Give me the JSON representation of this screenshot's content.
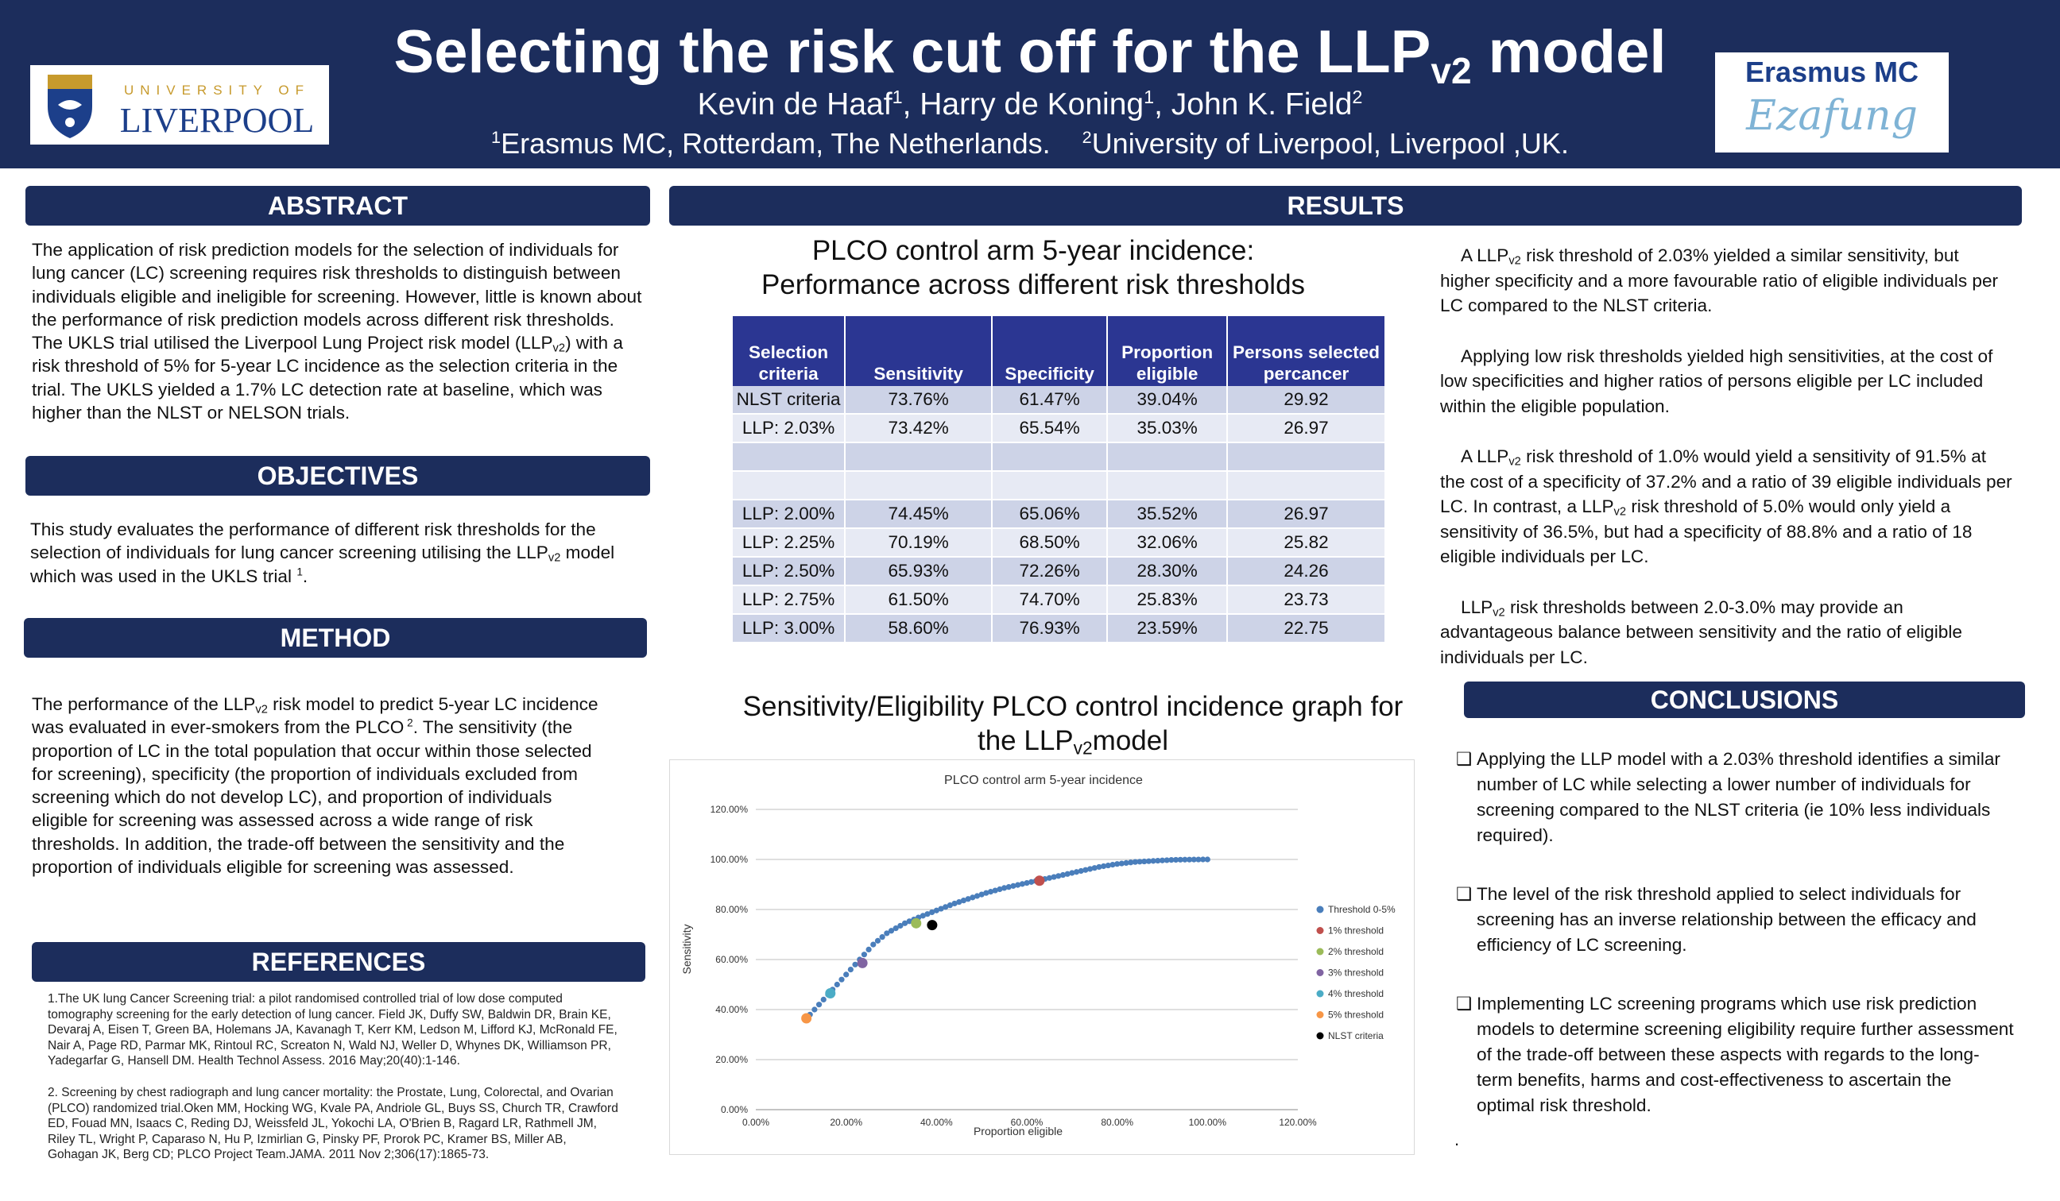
{
  "header": {
    "title_main": "Selecting the risk cut off for the LLP",
    "title_sub": "v2",
    "title_tail": " model",
    "authors": [
      {
        "name": "Kevin de Haaf",
        "aff": "1"
      },
      {
        "name": "Harry de Koning",
        "aff": "1"
      },
      {
        "name": "John K. Field",
        "aff": "2"
      }
    ],
    "affiliations": [
      {
        "num": "1",
        "text": "Erasmus MC, Rotterdam, The Netherlands."
      },
      {
        "num": "2",
        "text": "University of Liverpool, Liverpool ,UK."
      }
    ],
    "logo_left": {
      "small": "UNIVERSITY OF",
      "big": "LIVERPOOL"
    },
    "logo_right": {
      "text": "Erasmus MC",
      "script": "Ezafung"
    }
  },
  "sections": {
    "abstract": "ABSTRACT",
    "objectives": "OBJECTIVES",
    "method": "METHOD",
    "references": "REFERENCES",
    "results": "RESULTS",
    "conclusions": "CONCLUSIONS"
  },
  "abstract": {
    "part1": "The application of risk prediction models for the selection of individuals for lung cancer (LC) screening requires risk thresholds to distinguish between individuals eligible and ineligible for screening. However, little is known about the performance of risk prediction models across different risk thresholds. The UKLS trial utilised the Liverpool Lung Project risk model  (LLP",
    "sub": "v2",
    "part2": ") with a risk threshold of 5% for 5-year LC incidence as the selection criteria in the trial. The UKLS yielded a 1.7% LC detection rate at baseline, which was higher than the NLST or NELSON trials."
  },
  "objectives": {
    "part1": "This study evaluates the performance of different risk thresholds for the selection of individuals for lung cancer screening utilising the LLP",
    "sub": "v2",
    "part2": " model which was used in the UKLS trial ",
    "ref": "1",
    "part3": "."
  },
  "method": {
    "part1": "The performance of the LLP",
    "sub": "v2",
    "part2": " risk model to predict 5-year LC incidence was evaluated in ever-smokers from the PLCO",
    "ref": " 2",
    "part3": ". The sensitivity (the proportion of LC in the total population that occur within those selected for screening), specificity (the proportion of individuals excluded from screening which do not develop LC), and proportion of individuals eligible for screening was assessed across a wide range of risk thresholds. In addition, the trade-off between the sensitivity and the proportion of individuals eligible for screening was assessed."
  },
  "references": [
    "1.The UK lung Cancer Screening trial: a pilot randomised controlled trial of low dose computed tomography screening for the early detection of lung cancer. Field JK, Duffy SW, Baldwin DR, Brain KE, Devaraj A, Eisen T, Green BA, Holemans JA, Kavanagh T, Kerr KM, Ledson M, Lifford KJ, McRonald FE, Nair A, Page RD, Parmar MK, Rintoul RC, Screaton N, Wald NJ, Weller D, Whynes DK, Williamson PR, Yadegarfar G, Hansell DM. Health Technol Assess. 2016 May;20(40):1-146.",
    "2. Screening by chest radiograph and lung cancer mortality: the Prostate, Lung, Colorectal, and Ovarian (PLCO) randomized trial.Oken MM, Hocking WG, Kvale PA, Andriole GL, Buys SS, Church TR, Crawford ED, Fouad MN, Isaacs C, Reding DJ, Weissfeld JL, Yokochi LA, O'Brien B, Ragard LR, Rathmell JM, Riley TL, Wright P, Caparaso N, Hu P, Izmirlian G, Pinsky PF, Prorok PC, Kramer BS, Miller AB, Gohagan JK, Berg CD; PLCO Project Team.JAMA. 2011 Nov 2;306(17):1865-73."
  ],
  "table_title": {
    "line1": "PLCO control arm 5-year incidence:",
    "line2": "Performance across different risk thresholds"
  },
  "table": {
    "headers": [
      [
        "Selection",
        "criteria"
      ],
      [
        "Sensitivity"
      ],
      [
        "Specificity"
      ],
      [
        "Proportion",
        "eligible"
      ],
      [
        "Persons selected",
        "percancer"
      ]
    ],
    "rows": [
      [
        "NLST criteria",
        "73.76%",
        "61.47%",
        "39.04%",
        "29.92"
      ],
      [
        "LLP: 2.03%",
        "73.42%",
        "65.54%",
        "35.03%",
        "26.97"
      ],
      [
        "",
        "",
        "",
        "",
        ""
      ],
      [
        "",
        "",
        "",
        "",
        ""
      ],
      [
        "LLP: 2.00%",
        "74.45%",
        "65.06%",
        "35.52%",
        "26.97"
      ],
      [
        "LLP: 2.25%",
        "70.19%",
        "68.50%",
        "32.06%",
        "25.82"
      ],
      [
        "LLP: 2.50%",
        "65.93%",
        "72.26%",
        "28.30%",
        "24.26"
      ],
      [
        "LLP: 2.75%",
        "61.50%",
        "74.70%",
        "25.83%",
        "23.73"
      ],
      [
        "LLP: 3.00%",
        "58.60%",
        "76.93%",
        "23.59%",
        "22.75"
      ]
    ]
  },
  "graph_title": {
    "line1": "Sensitivity/Eligibility PLCO control incidence graph for",
    "line2a": "the LLP",
    "line2sub": "v2",
    "line2b": "model"
  },
  "chart_data": {
    "type": "scatter",
    "title": "PLCO control arm 5-year incidence",
    "xlabel": "Proportion eligible",
    "ylabel": "Sensitivity",
    "xlim": [
      0,
      120
    ],
    "ylim": [
      0,
      120
    ],
    "x_ticks": [
      "0.00%",
      "20.00%",
      "40.00%",
      "60.00%",
      "80.00%",
      "100.00%",
      "120.00%"
    ],
    "y_ticks": [
      "0.00%",
      "20.00%",
      "40.00%",
      "60.00%",
      "80.00%",
      "100.00%",
      "120.00%"
    ],
    "grid": "horizontal",
    "legend_position": "right",
    "series": [
      {
        "name": "Threshold 0-5%",
        "color": "#4a7ebb",
        "points": [
          [
            11.5,
            36
          ],
          [
            12,
            38
          ],
          [
            13,
            40
          ],
          [
            14,
            42
          ],
          [
            15,
            44
          ],
          [
            16,
            46
          ],
          [
            17,
            48
          ],
          [
            18,
            50
          ],
          [
            19,
            52
          ],
          [
            20,
            54
          ],
          [
            21,
            56
          ],
          [
            22,
            58
          ],
          [
            23,
            60
          ],
          [
            24,
            62
          ],
          [
            25,
            64
          ],
          [
            26,
            66
          ],
          [
            27,
            67.5
          ],
          [
            28,
            69
          ],
          [
            29,
            70.5
          ],
          [
            30,
            71.5
          ],
          [
            31,
            72.5
          ],
          [
            32,
            73.5
          ],
          [
            33,
            74.5
          ],
          [
            34,
            75.3
          ],
          [
            35,
            76
          ],
          [
            36,
            76.8
          ],
          [
            37,
            77.5
          ],
          [
            38,
            78.2
          ],
          [
            39,
            78.9
          ],
          [
            40,
            79.6
          ],
          [
            41,
            80.3
          ],
          [
            42,
            81
          ],
          [
            43,
            81.7
          ],
          [
            44,
            82.4
          ],
          [
            45,
            83
          ],
          [
            46,
            83.6
          ],
          [
            47,
            84.2
          ],
          [
            48,
            84.8
          ],
          [
            49,
            85.4
          ],
          [
            50,
            86
          ],
          [
            51,
            86.6
          ],
          [
            52,
            87.1
          ],
          [
            53,
            87.6
          ],
          [
            54,
            88.1
          ],
          [
            55,
            88.6
          ],
          [
            56,
            89
          ],
          [
            57,
            89.4
          ],
          [
            58,
            89.8
          ],
          [
            59,
            90.2
          ],
          [
            60,
            90.6
          ],
          [
            61,
            91
          ],
          [
            62,
            91.4
          ],
          [
            63,
            91.8
          ],
          [
            64,
            92.2
          ],
          [
            65,
            92.6
          ],
          [
            66,
            93
          ],
          [
            67,
            93.4
          ],
          [
            68,
            93.8
          ],
          [
            69,
            94.2
          ],
          [
            70,
            94.6
          ],
          [
            71,
            95
          ],
          [
            72,
            95.4
          ],
          [
            73,
            95.8
          ],
          [
            74,
            96.2
          ],
          [
            75,
            96.6
          ],
          [
            76,
            97
          ],
          [
            77,
            97.3
          ],
          [
            78,
            97.6
          ],
          [
            79,
            97.9
          ],
          [
            80,
            98.2
          ],
          [
            81,
            98.4
          ],
          [
            82,
            98.6
          ],
          [
            83,
            98.8
          ],
          [
            84,
            99
          ],
          [
            85,
            99.1
          ],
          [
            86,
            99.2
          ],
          [
            87,
            99.3
          ],
          [
            88,
            99.4
          ],
          [
            89,
            99.5
          ],
          [
            90,
            99.6
          ],
          [
            91,
            99.7
          ],
          [
            92,
            99.8
          ],
          [
            93,
            99.85
          ],
          [
            94,
            99.9
          ],
          [
            95,
            99.92
          ],
          [
            96,
            99.94
          ],
          [
            97,
            99.96
          ],
          [
            98,
            99.98
          ],
          [
            99,
            100
          ],
          [
            100,
            100
          ]
        ]
      },
      {
        "name": "1% threshold",
        "color": "#c0504d",
        "points": [
          [
            62.8,
            91.5
          ]
        ]
      },
      {
        "name": "2% threshold",
        "color": "#9bbb59",
        "points": [
          [
            35.5,
            74.5
          ]
        ]
      },
      {
        "name": "3% threshold",
        "color": "#8064a2",
        "points": [
          [
            23.6,
            58.6
          ]
        ]
      },
      {
        "name": "4% threshold",
        "color": "#4bacc6",
        "points": [
          [
            16.5,
            46.5
          ]
        ]
      },
      {
        "name": "5% threshold",
        "color": "#f79646",
        "points": [
          [
            11.2,
            36.5
          ]
        ]
      },
      {
        "name": "NLST criteria",
        "color": "#000000",
        "points": [
          [
            39.04,
            73.76
          ]
        ]
      }
    ]
  },
  "results_text": [
    {
      "pre": "A LLP",
      "sub": "v2",
      "post": " risk threshold of 2.03% yielded a similar sensitivity, but higher specificity and a more favourable ratio of eligible individuals per LC compared to the NLST criteria."
    },
    {
      "pre": "Applying low risk thresholds yielded high sensitivities, at the cost of low specificities and higher ratios of persons eligible per LC included within the eligible population.",
      "sub": "",
      "post": ""
    },
    {
      "pre": "A LLP",
      "sub": "v2",
      "post": " risk threshold of 1.0% would yield a sensitivity of 91.5% at the cost of a specificity of 37.2% and a ratio of 39 eligible individuals per LC. In contrast, a LLP",
      "sub2": "v2",
      "post2": " risk threshold of 5.0% would only yield a sensitivity of 36.5%, but had a specificity of 88.8% and a ratio of 18 eligible individuals per LC."
    },
    {
      "pre": "LLP",
      "sub": "v2",
      "post": " risk thresholds between 2.0-3.0% may provide an advantageous balance between sensitivity and the ratio of eligible individuals per LC."
    }
  ],
  "conclusions": {
    "bullet": "❑",
    "items": [
      "Applying the LLP model with a 2.03% threshold identifies a similar number of LC while selecting a lower number of individuals for screening compared to the NLST criteria (ie 10% less individuals required).",
      "The level of the risk threshold applied to select individuals for screening has an inverse relationship between the efficacy and efficiency of LC screening.",
      "Implementing LC screening programs which use risk prediction models to determine screening eligibility require further assessment of the trade-off between these aspects with regards to the long-term benefits, harms and cost-effectiveness to ascertain the optimal risk threshold."
    ],
    "tail": "."
  }
}
